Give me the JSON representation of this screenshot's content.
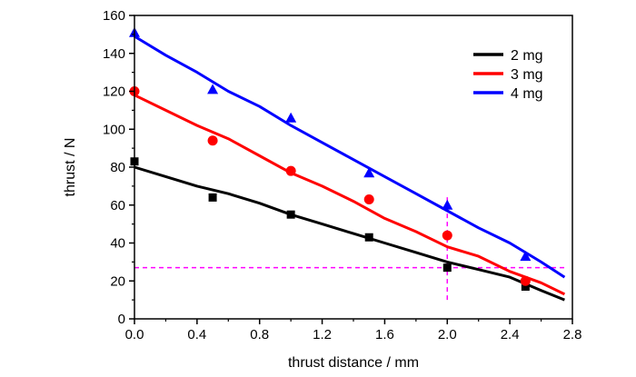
{
  "chart_data": {
    "type": "scatter",
    "xlabel": "thrust distance / mm",
    "ylabel": "thrust / N",
    "xlim": [
      0,
      2.8
    ],
    "ylim": [
      0,
      160
    ],
    "x_ticks": [
      0,
      0.4,
      0.8,
      1.2,
      1.6,
      2.0,
      2.4,
      2.8
    ],
    "x_tick_labels": [
      "0.0",
      "0.4",
      "0.8",
      "1.2",
      "1.6",
      "2.0",
      "2.4",
      "2.8"
    ],
    "y_ticks": [
      0,
      20,
      40,
      60,
      80,
      100,
      120,
      140,
      160
    ],
    "y_tick_labels": [
      "0",
      "20",
      "40",
      "60",
      "80",
      "100",
      "120",
      "140",
      "160"
    ],
    "grid": false,
    "legend_position": "top-right",
    "series": [
      {
        "name": "2 mg",
        "color": "#000000",
        "marker": "square",
        "points": {
          "x": [
            0,
            0.5,
            1.0,
            1.5,
            2.0,
            2.5
          ],
          "y": [
            83,
            64,
            55,
            43,
            27,
            17
          ]
        },
        "line": {
          "x": [
            0,
            0.2,
            0.4,
            0.6,
            0.8,
            1.0,
            1.2,
            1.4,
            1.6,
            1.8,
            2.0,
            2.2,
            2.4,
            2.6,
            2.75
          ],
          "y": [
            80,
            75,
            70,
            66,
            61,
            55,
            50,
            45,
            40,
            35,
            30,
            26,
            22,
            15,
            10
          ]
        }
      },
      {
        "name": "3 mg",
        "color": "#ff0000",
        "marker": "circle",
        "points": {
          "x": [
            0,
            0.5,
            1.0,
            1.5,
            2.0,
            2.5
          ],
          "y": [
            120,
            94,
            78,
            63,
            44,
            20
          ]
        },
        "line": {
          "x": [
            0,
            0.2,
            0.4,
            0.6,
            0.8,
            1.0,
            1.2,
            1.4,
            1.6,
            1.8,
            2.0,
            2.2,
            2.4,
            2.6,
            2.75
          ],
          "y": [
            118,
            110,
            102,
            95,
            86,
            77,
            70,
            62,
            53,
            46,
            38,
            33,
            25,
            19,
            13
          ]
        }
      },
      {
        "name": "4 mg",
        "color": "#0000ff",
        "marker": "triangle",
        "points": {
          "x": [
            0,
            0.5,
            1.0,
            1.5,
            2.0,
            2.5
          ],
          "y": [
            151,
            121,
            106,
            77,
            60,
            33
          ]
        },
        "line": {
          "x": [
            0,
            0.2,
            0.4,
            0.6,
            0.8,
            1.0,
            1.2,
            1.4,
            1.6,
            1.8,
            2.0,
            2.2,
            2.4,
            2.6,
            2.75
          ],
          "y": [
            149,
            139,
            130,
            120,
            112,
            102,
            93,
            84,
            75,
            66,
            57,
            48,
            40,
            30,
            22
          ]
        }
      }
    ],
    "reference_lines": [
      {
        "orientation": "horizontal",
        "y": 27,
        "x_range": [
          0,
          2.75
        ],
        "color": "#ff00ff",
        "style": "dashed"
      },
      {
        "orientation": "vertical",
        "x": 2.0,
        "y_range": [
          10,
          66
        ],
        "color": "#ff00ff",
        "style": "dashed"
      }
    ]
  }
}
